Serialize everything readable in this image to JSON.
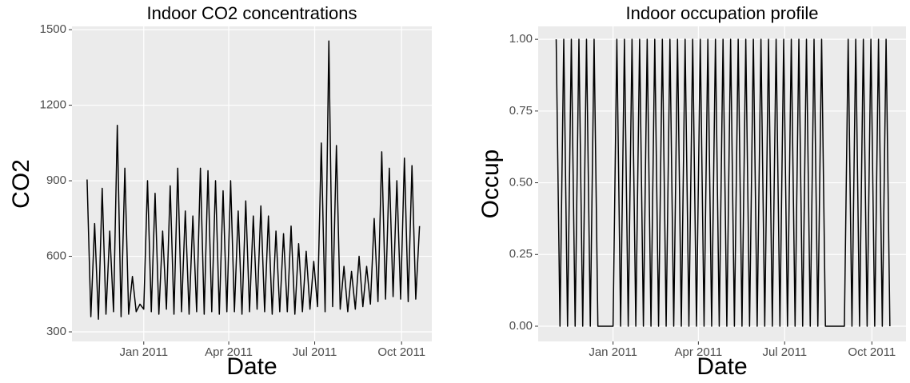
{
  "chart_data": [
    {
      "type": "line",
      "title": "Indoor CO2 concentrations",
      "x_label": "Date",
      "y_label": "CO2",
      "xlim": [
        "2010-10-17",
        "2011-11-02"
      ],
      "ylim": [
        262,
        1513
      ],
      "xticks": [
        {
          "value": "2011-01-01",
          "label": "Jan 2011"
        },
        {
          "value": "2011-04-01",
          "label": "Apr 2011"
        },
        {
          "value": "2011-07-01",
          "label": "Jul 2011"
        },
        {
          "value": "2011-10-01",
          "label": "Oct 2011"
        }
      ],
      "yticks": [
        300,
        600,
        900,
        1200,
        1500
      ],
      "grid": true,
      "x": [
        "2010-11-02",
        "2010-11-06",
        "2010-11-10",
        "2010-11-14",
        "2010-11-18",
        "2010-11-22",
        "2010-11-26",
        "2010-11-30",
        "2010-12-04",
        "2010-12-08",
        "2010-12-12",
        "2010-12-16",
        "2010-12-20",
        "2010-12-24",
        "2010-12-28",
        "2011-01-01",
        "2011-01-05",
        "2011-01-09",
        "2011-01-13",
        "2011-01-17",
        "2011-01-21",
        "2011-01-25",
        "2011-01-29",
        "2011-02-02",
        "2011-02-06",
        "2011-02-10",
        "2011-02-14",
        "2011-02-18",
        "2011-02-22",
        "2011-02-26",
        "2011-03-02",
        "2011-03-06",
        "2011-03-10",
        "2011-03-14",
        "2011-03-18",
        "2011-03-22",
        "2011-03-26",
        "2011-03-30",
        "2011-04-03",
        "2011-04-07",
        "2011-04-11",
        "2011-04-15",
        "2011-04-19",
        "2011-04-23",
        "2011-04-27",
        "2011-05-01",
        "2011-05-05",
        "2011-05-09",
        "2011-05-13",
        "2011-05-17",
        "2011-05-21",
        "2011-05-25",
        "2011-05-29",
        "2011-06-02",
        "2011-06-06",
        "2011-06-10",
        "2011-06-14",
        "2011-06-18",
        "2011-06-22",
        "2011-06-26",
        "2011-06-30",
        "2011-07-04",
        "2011-07-08",
        "2011-07-12",
        "2011-07-16",
        "2011-07-20",
        "2011-07-24",
        "2011-07-28",
        "2011-08-01",
        "2011-08-05",
        "2011-08-09",
        "2011-08-13",
        "2011-08-17",
        "2011-08-21",
        "2011-08-25",
        "2011-08-29",
        "2011-09-02",
        "2011-09-06",
        "2011-09-10",
        "2011-09-14",
        "2011-09-18",
        "2011-09-22",
        "2011-09-26",
        "2011-09-30",
        "2011-10-04",
        "2011-10-08",
        "2011-10-12",
        "2011-10-16",
        "2011-10-20"
      ],
      "series": [
        {
          "name": "CO2",
          "color": "#000000",
          "values": [
            905,
            360,
            730,
            350,
            870,
            370,
            700,
            380,
            1120,
            360,
            950,
            370,
            520,
            380,
            410,
            390,
            900,
            380,
            850,
            370,
            700,
            390,
            880,
            370,
            950,
            380,
            780,
            370,
            760,
            380,
            950,
            370,
            940,
            380,
            900,
            370,
            860,
            380,
            900,
            380,
            780,
            370,
            820,
            380,
            760,
            390,
            800,
            380,
            760,
            370,
            700,
            380,
            690,
            380,
            720,
            370,
            650,
            380,
            620,
            390,
            580,
            400,
            1050,
            380,
            1455,
            400,
            1040,
            390,
            560,
            380,
            540,
            390,
            600,
            400,
            560,
            410,
            750,
            420,
            1015,
            430,
            950,
            440,
            900,
            430,
            990,
            420,
            960,
            430,
            720
          ]
        }
      ]
    },
    {
      "type": "line",
      "title": "Indoor occupation profile",
      "x_label": "Date",
      "y_label": "Occup",
      "xlim": [
        "2010-10-14",
        "2011-11-06"
      ],
      "ylim": [
        -0.053,
        1.045
      ],
      "xticks": [
        {
          "value": "2011-01-01",
          "label": "Jan 2011"
        },
        {
          "value": "2011-04-01",
          "label": "Apr 2011"
        },
        {
          "value": "2011-07-01",
          "label": "Jul 2011"
        },
        {
          "value": "2011-10-01",
          "label": "Oct 2011"
        }
      ],
      "yticks": [
        {
          "value": 0,
          "label": "0.00"
        },
        {
          "value": 0.25,
          "label": "0.25"
        },
        {
          "value": 0.5,
          "label": "0.50"
        },
        {
          "value": 0.75,
          "label": "0.75"
        },
        {
          "value": 1,
          "label": "1.00"
        }
      ],
      "grid": true,
      "x": [
        "2010-11-02",
        "2010-11-06",
        "2010-11-10",
        "2010-11-14",
        "2010-11-18",
        "2010-11-22",
        "2010-11-26",
        "2010-11-30",
        "2010-12-04",
        "2010-12-08",
        "2010-12-12",
        "2010-12-16",
        "2010-12-20",
        "2010-12-24",
        "2010-12-28",
        "2011-01-01",
        "2011-01-05",
        "2011-01-09",
        "2011-01-13",
        "2011-01-17",
        "2011-01-21",
        "2011-01-25",
        "2011-01-29",
        "2011-02-02",
        "2011-02-06",
        "2011-02-10",
        "2011-02-14",
        "2011-02-18",
        "2011-02-22",
        "2011-02-26",
        "2011-03-02",
        "2011-03-06",
        "2011-03-10",
        "2011-03-14",
        "2011-03-18",
        "2011-03-22",
        "2011-03-26",
        "2011-03-30",
        "2011-04-03",
        "2011-04-07",
        "2011-04-11",
        "2011-04-15",
        "2011-04-19",
        "2011-04-23",
        "2011-04-27",
        "2011-05-01",
        "2011-05-05",
        "2011-05-09",
        "2011-05-13",
        "2011-05-17",
        "2011-05-21",
        "2011-05-25",
        "2011-05-29",
        "2011-06-02",
        "2011-06-06",
        "2011-06-10",
        "2011-06-14",
        "2011-06-18",
        "2011-06-22",
        "2011-06-26",
        "2011-06-30",
        "2011-07-04",
        "2011-07-08",
        "2011-07-12",
        "2011-07-16",
        "2011-07-20",
        "2011-07-24",
        "2011-07-28",
        "2011-08-01",
        "2011-08-05",
        "2011-08-09",
        "2011-08-13",
        "2011-08-17",
        "2011-08-21",
        "2011-08-25",
        "2011-08-29",
        "2011-09-02",
        "2011-09-06",
        "2011-09-10",
        "2011-09-14",
        "2011-09-18",
        "2011-09-22",
        "2011-09-26",
        "2011-09-30",
        "2011-10-04",
        "2011-10-08",
        "2011-10-12",
        "2011-10-16",
        "2011-10-20"
      ],
      "series": [
        {
          "name": "Occup",
          "color": "#000000",
          "values": [
            1,
            0,
            1,
            0,
            1,
            0,
            1,
            0,
            1,
            0,
            1,
            0,
            0,
            0,
            0,
            0,
            1,
            0,
            1,
            0,
            1,
            0,
            1,
            0,
            1,
            0,
            1,
            0,
            1,
            0,
            1,
            0,
            1,
            0,
            1,
            0,
            1,
            0,
            1,
            0,
            1,
            0,
            1,
            0,
            1,
            0,
            1,
            0,
            1,
            0,
            1,
            0,
            1,
            0,
            1,
            0,
            1,
            0,
            1,
            0,
            1,
            0,
            1,
            0,
            1,
            0,
            1,
            0,
            1,
            0,
            1,
            0,
            0,
            0,
            0,
            0,
            0,
            1,
            0,
            1,
            0,
            1,
            0,
            1,
            0,
            1,
            0,
            1,
            0
          ]
        }
      ]
    }
  ]
}
